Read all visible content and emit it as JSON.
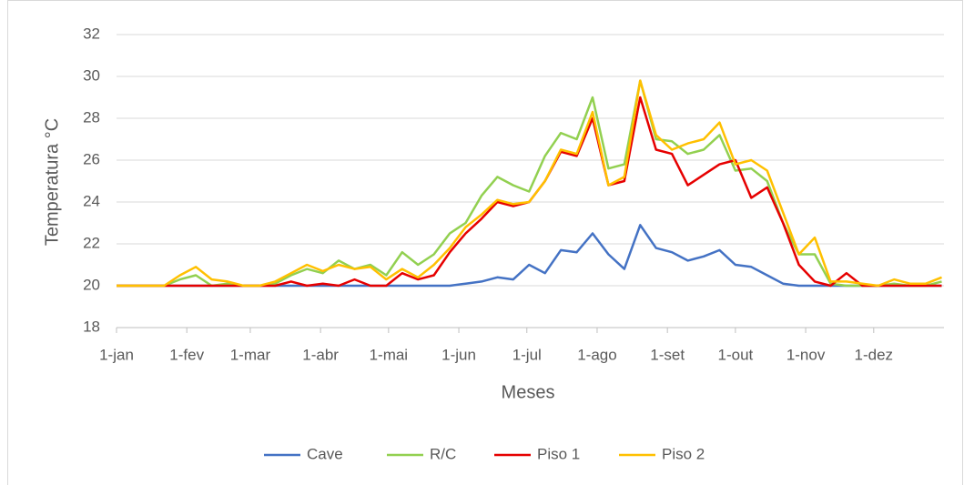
{
  "chart_data": {
    "type": "line",
    "x_label": "Meses",
    "y_label": "Temperatura °C",
    "x": [
      0,
      7,
      14,
      21,
      28,
      35,
      42,
      49,
      56,
      63,
      70,
      77,
      84,
      91,
      98,
      105,
      112,
      119,
      126,
      133,
      140,
      147,
      154,
      161,
      168,
      175,
      182,
      189,
      196,
      203,
      210,
      217,
      224,
      231,
      238,
      245,
      252,
      259,
      266,
      273,
      280,
      287,
      294,
      301,
      308,
      315,
      322,
      329,
      336,
      343,
      350,
      357,
      364
    ],
    "xlim": [
      0,
      365
    ],
    "xticks": [
      {
        "value": 0,
        "label": "1-jan"
      },
      {
        "value": 31,
        "label": "1-fev"
      },
      {
        "value": 59,
        "label": "1-mar"
      },
      {
        "value": 90,
        "label": "1-abr"
      },
      {
        "value": 120,
        "label": "1-mai"
      },
      {
        "value": 151,
        "label": "1-jun"
      },
      {
        "value": 181,
        "label": "1-jul"
      },
      {
        "value": 212,
        "label": "1-ago"
      },
      {
        "value": 243,
        "label": "1-set"
      },
      {
        "value": 273,
        "label": "1-out"
      },
      {
        "value": 304,
        "label": "1-nov"
      },
      {
        "value": 334,
        "label": "1-dez"
      }
    ],
    "ylim": [
      18,
      32
    ],
    "yticks": [
      18,
      20,
      22,
      24,
      26,
      28,
      30,
      32
    ],
    "grid": true,
    "legend": "bottom",
    "series": [
      {
        "name": "Cave",
        "color": "#4472c4",
        "values": [
          20.0,
          20.0,
          20.0,
          20.0,
          20.0,
          20.0,
          20.0,
          20.0,
          20.0,
          20.0,
          20.0,
          20.0,
          20.0,
          20.0,
          20.0,
          20.0,
          20.0,
          20.0,
          20.0,
          20.0,
          20.0,
          20.0,
          20.1,
          20.2,
          20.4,
          20.3,
          21.0,
          20.6,
          21.7,
          21.6,
          22.5,
          21.5,
          20.8,
          22.9,
          21.8,
          21.6,
          21.2,
          21.4,
          21.7,
          21.0,
          20.9,
          20.5,
          20.1,
          20.0,
          20.0,
          20.0,
          20.0,
          20.0,
          20.0,
          20.0,
          20.0,
          20.0,
          20.0
        ]
      },
      {
        "name": "R/C",
        "color": "#92d050",
        "values": [
          20.0,
          20.0,
          20.0,
          20.0,
          20.3,
          20.5,
          20.0,
          20.1,
          20.0,
          20.0,
          20.1,
          20.5,
          20.8,
          20.6,
          21.2,
          20.8,
          21.0,
          20.5,
          21.6,
          21.0,
          21.5,
          22.5,
          23.0,
          24.3,
          25.2,
          24.8,
          24.5,
          26.2,
          27.3,
          27.0,
          29.0,
          25.6,
          25.8,
          29.8,
          27.0,
          26.9,
          26.3,
          26.5,
          27.2,
          25.5,
          25.6,
          25.0,
          23.0,
          21.5,
          21.5,
          20.1,
          20.0,
          20.0,
          20.0,
          20.1,
          20.0,
          20.0,
          20.2
        ]
      },
      {
        "name": "Piso 1",
        "color": "#e60000",
        "values": [
          20.0,
          20.0,
          20.0,
          20.0,
          20.0,
          20.0,
          20.0,
          20.0,
          20.0,
          20.0,
          20.0,
          20.2,
          20.0,
          20.1,
          20.0,
          20.3,
          20.0,
          20.0,
          20.6,
          20.3,
          20.5,
          21.6,
          22.5,
          23.2,
          24.0,
          23.8,
          24.0,
          25.0,
          26.4,
          26.2,
          28.0,
          24.8,
          25.0,
          29.0,
          26.5,
          26.3,
          24.8,
          25.3,
          25.8,
          26.0,
          24.2,
          24.7,
          23.0,
          21.0,
          20.2,
          20.0,
          20.6,
          20.0,
          20.0,
          20.0,
          20.0,
          20.0,
          20.0
        ]
      },
      {
        "name": "Piso 2",
        "color": "#ffc000",
        "values": [
          20.0,
          20.0,
          20.0,
          20.0,
          20.5,
          20.9,
          20.3,
          20.2,
          20.0,
          20.0,
          20.2,
          20.6,
          21.0,
          20.7,
          21.0,
          20.8,
          20.9,
          20.3,
          20.8,
          20.4,
          21.0,
          21.8,
          22.8,
          23.4,
          24.1,
          23.9,
          24.0,
          25.0,
          26.5,
          26.3,
          28.3,
          24.8,
          25.2,
          29.8,
          27.2,
          26.5,
          26.8,
          27.0,
          27.8,
          25.8,
          26.0,
          25.5,
          23.5,
          21.5,
          22.3,
          20.2,
          20.2,
          20.1,
          20.0,
          20.3,
          20.1,
          20.1,
          20.4
        ]
      }
    ]
  }
}
